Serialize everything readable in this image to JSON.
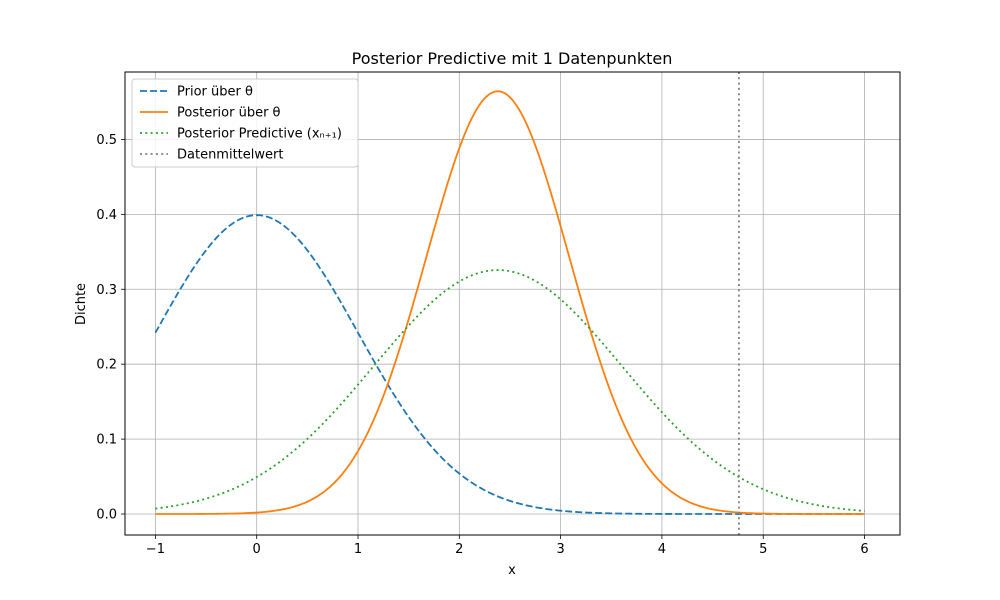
{
  "chart_data": {
    "type": "line",
    "title": "Posterior Predictive mit 1 Datenpunkten",
    "xlabel": "x",
    "ylabel": "Dichte",
    "xlim": [
      -1.3,
      6.35
    ],
    "ylim": [
      -0.028,
      0.59
    ],
    "x_ticks": [
      -1,
      0,
      1,
      2,
      3,
      4,
      5,
      6
    ],
    "x_tick_labels": [
      "−1",
      "0",
      "1",
      "2",
      "3",
      "4",
      "5",
      "6"
    ],
    "y_ticks": [
      0.0,
      0.1,
      0.2,
      0.3,
      0.4,
      0.5
    ],
    "y_tick_labels": [
      "0.0",
      "0.1",
      "0.2",
      "0.3",
      "0.4",
      "0.5"
    ],
    "grid": true,
    "legend_position": "top-left",
    "series": [
      {
        "name": "Prior über θ",
        "style": "dashed",
        "color": "#1f77b4",
        "distribution": "normal",
        "mean": 0.0,
        "sd": 1.0,
        "x_range": [
          -1,
          6
        ]
      },
      {
        "name": "Posterior über θ",
        "style": "solid",
        "color": "#ff7f0e",
        "distribution": "normal",
        "mean": 2.38,
        "sd": 0.707,
        "x_range": [
          -1,
          6
        ]
      },
      {
        "name": "Posterior Predictive (xₙ₊₁)",
        "style": "dotted",
        "color": "#2ca02c",
        "distribution": "normal",
        "mean": 2.38,
        "sd": 1.225,
        "x_range": [
          -1,
          6
        ]
      }
    ],
    "vline": {
      "name": "Datenmittelwert",
      "style": "dotted",
      "color": "#7f7f7f",
      "x": 4.76
    }
  }
}
